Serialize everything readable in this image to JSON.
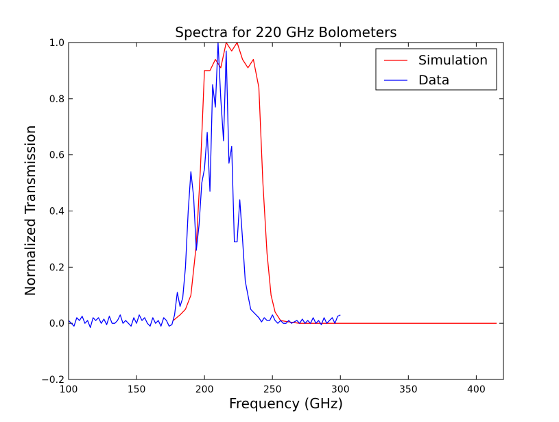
{
  "chart_data": {
    "type": "line",
    "title": "Spectra for 220 GHz Bolometers",
    "xlabel": "Frequency (GHz)",
    "ylabel": "Normalized Transmission",
    "xlim": [
      100,
      420
    ],
    "ylim": [
      -0.2,
      1.0
    ],
    "xticks": [
      100,
      150,
      200,
      250,
      300,
      350,
      400
    ],
    "yticks": [
      -0.2,
      0.0,
      0.2,
      0.4,
      0.6,
      0.8,
      1.0
    ],
    "xtick_labels": [
      "100",
      "150",
      "200",
      "250",
      "300",
      "350",
      "400"
    ],
    "ytick_labels": [
      "−0.2",
      "0.0",
      "0.2",
      "0.4",
      "0.6",
      "0.8",
      "1.0"
    ],
    "grid": false,
    "legend_position": "top-right",
    "series": [
      {
        "name": "Simulation",
        "color": "#ff0000",
        "x": [
          177,
          182,
          186,
          190,
          194,
          197,
          200,
          204,
          208,
          212,
          216,
          220,
          224,
          228,
          232,
          236,
          240,
          243,
          246,
          249,
          252,
          256,
          262,
          270,
          280,
          300,
          350,
          415
        ],
        "y": [
          0.01,
          0.03,
          0.05,
          0.1,
          0.28,
          0.55,
          0.9,
          0.9,
          0.94,
          0.91,
          1.0,
          0.97,
          1.0,
          0.94,
          0.91,
          0.94,
          0.84,
          0.5,
          0.25,
          0.1,
          0.04,
          0.01,
          0.005,
          0.0,
          0.0,
          0.0,
          0.0,
          0.0
        ]
      },
      {
        "name": "Data",
        "color": "#0000ff",
        "x": [
          100,
          102,
          104,
          106,
          108,
          110,
          112,
          114,
          116,
          118,
          120,
          122,
          124,
          126,
          128,
          130,
          132,
          134,
          136,
          138,
          140,
          142,
          144,
          146,
          148,
          150,
          152,
          154,
          156,
          158,
          160,
          162,
          164,
          166,
          168,
          170,
          172,
          174,
          176,
          178,
          180,
          182,
          184,
          186,
          188,
          190,
          192,
          194,
          196,
          198,
          200,
          202,
          204,
          206,
          208,
          210,
          212,
          214,
          216,
          218,
          220,
          222,
          224,
          226,
          228,
          230,
          232,
          234,
          236,
          238,
          240,
          242,
          244,
          246,
          248,
          250,
          252,
          254,
          256,
          258,
          260,
          262,
          264,
          266,
          268,
          270,
          272,
          274,
          276,
          278,
          280,
          282,
          284,
          286,
          288,
          290,
          292,
          294,
          296,
          298,
          300
        ],
        "y": [
          0.01,
          0.0,
          -0.01,
          0.02,
          0.01,
          0.025,
          0.0,
          0.01,
          -0.015,
          0.02,
          0.01,
          0.02,
          0.0,
          0.015,
          -0.005,
          0.025,
          0.0,
          0.0,
          0.01,
          0.03,
          0.0,
          0.01,
          0.0,
          -0.01,
          0.02,
          0.0,
          0.03,
          0.01,
          0.02,
          0.0,
          -0.01,
          0.02,
          0.0,
          0.01,
          -0.01,
          0.02,
          0.01,
          -0.01,
          -0.005,
          0.03,
          0.11,
          0.06,
          0.09,
          0.2,
          0.4,
          0.54,
          0.45,
          0.26,
          0.35,
          0.5,
          0.55,
          0.68,
          0.47,
          0.85,
          0.77,
          1.0,
          0.8,
          0.65,
          0.97,
          0.57,
          0.63,
          0.29,
          0.29,
          0.44,
          0.3,
          0.15,
          0.1,
          0.05,
          0.04,
          0.03,
          0.02,
          0.005,
          0.02,
          0.01,
          0.01,
          0.03,
          0.01,
          0.0,
          0.01,
          0.0,
          0.0,
          0.01,
          0.0,
          0.005,
          0.01,
          0.0,
          0.015,
          0.0,
          0.01,
          0.0,
          0.02,
          0.0,
          0.01,
          -0.005,
          0.02,
          0.0,
          0.01,
          0.02,
          0.0,
          0.025,
          0.03
        ]
      }
    ]
  }
}
